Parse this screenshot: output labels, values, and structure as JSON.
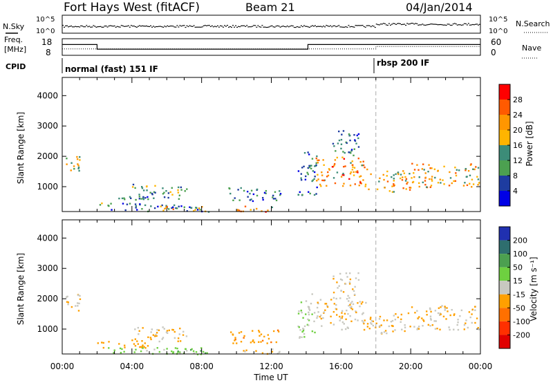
{
  "header": {
    "station": "Fort Hays West (fitACF)",
    "beam": "Beam 21",
    "date": "04/Jan/2014"
  },
  "status": {
    "nsky": {
      "label": "N.Sky",
      "ticks": [
        "10^5",
        "10^0"
      ]
    },
    "nsearch": {
      "label": "N.Search",
      "ticks": [
        "10^5",
        "10^0"
      ]
    },
    "freq": {
      "label_line1": "Freq.",
      "label_line2": "[MHz]",
      "ticks": [
        "18",
        "8"
      ],
      "segments": [
        {
          "t0": 0.0,
          "t1": 2.0,
          "mhz": 14.5
        },
        {
          "t0": 2.0,
          "t1": 14.1,
          "mhz": 11.7
        },
        {
          "t0": 14.1,
          "t1": 24.0,
          "mhz": 14.5
        }
      ]
    },
    "nave": {
      "label": "Nave",
      "ticks": [
        "60",
        "0"
      ],
      "segments": [
        {
          "t0": 0.0,
          "t1": 18.0,
          "n": 23
        },
        {
          "t0": 18.0,
          "t1": 24.0,
          "n": 32
        }
      ]
    },
    "cpid": {
      "label": "CPID",
      "modes": [
        {
          "t0": 0.0,
          "t1": 18.0,
          "text": "normal (fast) 151 IF"
        },
        {
          "t0": 18.0,
          "t1": 24.0,
          "text": "rbsp 200 IF"
        }
      ]
    }
  },
  "panels": {
    "power": {
      "ylabel": "Slant Range [km]",
      "yticks": [
        "4000",
        "3000",
        "2000",
        "1000"
      ],
      "cbar_label": "Power [dB]",
      "cbar_ticks": [
        "28",
        "24",
        "20",
        "16",
        "12",
        "8",
        "4"
      ],
      "cbar_colors": [
        "#ff0000",
        "#ff5a00",
        "#ff9600",
        "#ffb400",
        "#3c8c78",
        "#4ca050",
        "#1e3ca0",
        "#0000e6"
      ]
    },
    "velocity": {
      "ylabel": "Slant Range [km]",
      "yticks": [
        "4000",
        "3000",
        "2000",
        "1000"
      ],
      "cbar_label": "Velocity [m s⁻¹]",
      "cbar_ticks": [
        "200",
        "100",
        "50",
        "15",
        "-15",
        "-50",
        "-100",
        "-200"
      ],
      "cbar_colors": [
        "#2030b0",
        "#2e6e6e",
        "#4ca050",
        "#6ed040",
        "#c8c8c0",
        "#ffa000",
        "#ff7000",
        "#ff3000",
        "#e00000"
      ]
    }
  },
  "xaxis": {
    "label": "Time UT",
    "ticks": [
      "00:00",
      "04:00",
      "08:00",
      "12:00",
      "16:00",
      "20:00",
      "00:00"
    ]
  },
  "chart_data": {
    "type": "heatmap",
    "title": "Fort Hays West (fitACF)",
    "x_range_hours": [
      0,
      24
    ],
    "y_range_km": [
      180,
      4600
    ],
    "marker_time_hours": 18.0,
    "scatter_regions": [
      {
        "t0": 0.1,
        "t1": 1.0,
        "r0": 1550,
        "r1": 2200,
        "power_db": 18,
        "velocity": -15
      },
      {
        "t0": 2.0,
        "t1": 5.0,
        "r0": 400,
        "r1": 700,
        "power_db": 10,
        "velocity": -30
      },
      {
        "t0": 4.0,
        "t1": 7.2,
        "r0": 600,
        "r1": 1100,
        "power_db": 12,
        "velocity": -15
      },
      {
        "t0": 2.5,
        "t1": 8.0,
        "r0": 200,
        "r1": 420,
        "power_db": 8,
        "velocity": 25
      },
      {
        "t0": 5.5,
        "t1": 8.5,
        "r0": 180,
        "r1": 380,
        "power_db": 20,
        "velocity": 40
      },
      {
        "t0": 9.5,
        "t1": 12.5,
        "r0": 550,
        "r1": 1000,
        "power_db": 8,
        "velocity": -40
      },
      {
        "t0": 10.0,
        "t1": 12.5,
        "r0": 190,
        "r1": 380,
        "power_db": 22,
        "velocity": -20
      },
      {
        "t0": 13.5,
        "t1": 14.6,
        "r0": 700,
        "r1": 2200,
        "power_db": 10,
        "velocity": 10
      },
      {
        "t0": 14.5,
        "t1": 17.5,
        "r0": 1000,
        "r1": 2000,
        "power_db": 22,
        "velocity": -15
      },
      {
        "t0": 17.5,
        "t1": 20.0,
        "r0": 850,
        "r1": 1550,
        "power_db": 20,
        "velocity": -15
      },
      {
        "t0": 20.0,
        "t1": 23.9,
        "r0": 1000,
        "r1": 1800,
        "power_db": 20,
        "velocity": -15
      },
      {
        "t0": 15.5,
        "t1": 17.0,
        "r0": 2000,
        "r1": 2900,
        "power_db": 8,
        "velocity": -10
      }
    ]
  }
}
